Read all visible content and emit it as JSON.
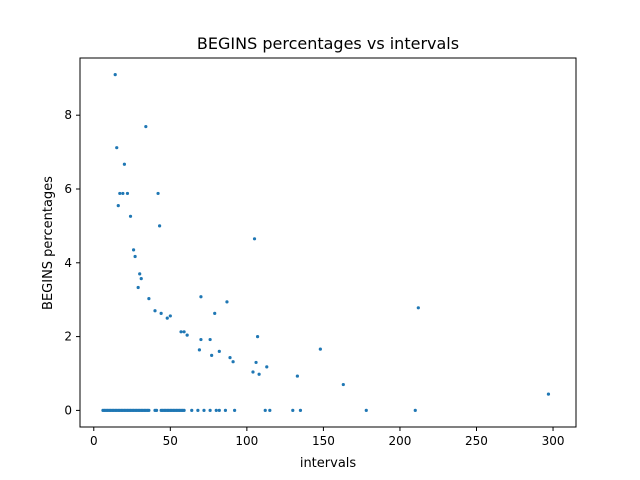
{
  "chart_data": {
    "type": "scatter",
    "title": "BEGINS percentages vs intervals",
    "xlabel": "intervals",
    "ylabel": "BEGINS percentages",
    "xlim": [
      -9,
      315
    ],
    "ylim": [
      -0.45,
      9.55
    ],
    "xticks": [
      0,
      50,
      100,
      150,
      200,
      250,
      300
    ],
    "yticks": [
      0,
      2,
      4,
      6,
      8
    ],
    "grid": false,
    "marker_color": "#1f77b4",
    "series": [
      {
        "points": [
          [
            14,
            9.1
          ],
          [
            15,
            7.12
          ],
          [
            16,
            5.55
          ],
          [
            17,
            5.88
          ],
          [
            19,
            5.88
          ],
          [
            20,
            6.67
          ],
          [
            22,
            5.88
          ],
          [
            24,
            5.26
          ],
          [
            26,
            4.35
          ],
          [
            27,
            4.17
          ],
          [
            29,
            3.33
          ],
          [
            30,
            3.7
          ],
          [
            31,
            3.57
          ],
          [
            34,
            7.69
          ],
          [
            36,
            3.03
          ],
          [
            40,
            2.7
          ],
          [
            42,
            5.88
          ],
          [
            43,
            5.0
          ],
          [
            44,
            2.63
          ],
          [
            48,
            2.5
          ],
          [
            50,
            2.56
          ],
          [
            57,
            2.13
          ],
          [
            59,
            2.13
          ],
          [
            61,
            2.04
          ],
          [
            69,
            1.64
          ],
          [
            70,
            3.08
          ],
          [
            70,
            1.92
          ],
          [
            76,
            1.92
          ],
          [
            77,
            1.49
          ],
          [
            79,
            2.63
          ],
          [
            82,
            1.6
          ],
          [
            87,
            2.94
          ],
          [
            89,
            1.43
          ],
          [
            91,
            1.32
          ],
          [
            104,
            1.04
          ],
          [
            105,
            4.65
          ],
          [
            106,
            1.3
          ],
          [
            107,
            2.0
          ],
          [
            108,
            0.98
          ],
          [
            113,
            1.18
          ],
          [
            133,
            0.93
          ],
          [
            148,
            1.66
          ],
          [
            163,
            0.7
          ],
          [
            212,
            2.78
          ],
          [
            297,
            0.44
          ],
          [
            6,
            0
          ],
          [
            7,
            0
          ],
          [
            8,
            0
          ],
          [
            9,
            0
          ],
          [
            10,
            0
          ],
          [
            11,
            0
          ],
          [
            12,
            0
          ],
          [
            13,
            0
          ],
          [
            14,
            0
          ],
          [
            15,
            0
          ],
          [
            16,
            0
          ],
          [
            17,
            0
          ],
          [
            18,
            0
          ],
          [
            19,
            0
          ],
          [
            20,
            0
          ],
          [
            21,
            0
          ],
          [
            22,
            0
          ],
          [
            23,
            0
          ],
          [
            24,
            0
          ],
          [
            25,
            0
          ],
          [
            26,
            0
          ],
          [
            27,
            0
          ],
          [
            28,
            0
          ],
          [
            29,
            0
          ],
          [
            30,
            0
          ],
          [
            31,
            0
          ],
          [
            32,
            0
          ],
          [
            33,
            0
          ],
          [
            34,
            0
          ],
          [
            35,
            0
          ],
          [
            36,
            0
          ],
          [
            40,
            0
          ],
          [
            41,
            0
          ],
          [
            44,
            0
          ],
          [
            45,
            0
          ],
          [
            46,
            0
          ],
          [
            47,
            0
          ],
          [
            48,
            0
          ],
          [
            49,
            0
          ],
          [
            50,
            0
          ],
          [
            51,
            0
          ],
          [
            52,
            0
          ],
          [
            53,
            0
          ],
          [
            54,
            0
          ],
          [
            55,
            0
          ],
          [
            56,
            0
          ],
          [
            57,
            0
          ],
          [
            58,
            0
          ],
          [
            59,
            0
          ],
          [
            64,
            0
          ],
          [
            68,
            0
          ],
          [
            72,
            0
          ],
          [
            76,
            0
          ],
          [
            80,
            0
          ],
          [
            82,
            0
          ],
          [
            86,
            0
          ],
          [
            92,
            0
          ],
          [
            112,
            0
          ],
          [
            115,
            0
          ],
          [
            130,
            0
          ],
          [
            135,
            0
          ],
          [
            178,
            0
          ],
          [
            210,
            0
          ]
        ]
      }
    ]
  }
}
